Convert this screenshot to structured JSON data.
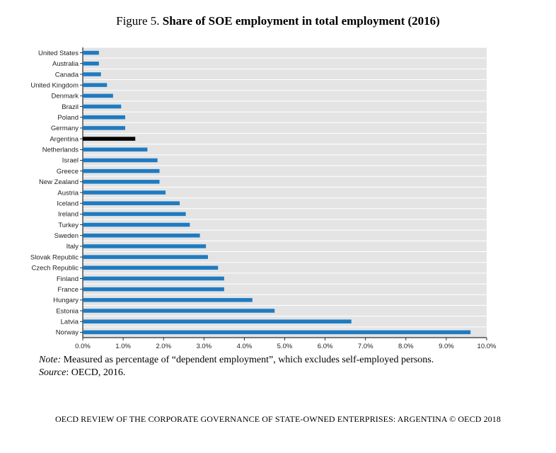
{
  "figure": {
    "prefix": "Figure 5.",
    "title": "Share of SOE employment in total employment (2016)"
  },
  "chart_data": {
    "type": "bar",
    "orientation": "horizontal",
    "categories": [
      "United States",
      "Australia",
      "Canada",
      "United Kingdom",
      "Denmark",
      "Brazil",
      "Poland",
      "Germany",
      "Argentina",
      "Netherlands",
      "Israel",
      "Greece",
      "New Zealand",
      "Austria",
      "Iceland",
      "Ireland",
      "Turkey",
      "Sweden",
      "Italy",
      "Slovak Republic",
      "Czech Republic",
      "Finland",
      "France",
      "Hungary",
      "Estonia",
      "Latvia",
      "Norway"
    ],
    "values": [
      0.4,
      0.4,
      0.45,
      0.6,
      0.75,
      0.95,
      1.05,
      1.05,
      1.3,
      1.6,
      1.85,
      1.9,
      1.9,
      2.05,
      2.4,
      2.55,
      2.65,
      2.9,
      3.05,
      3.1,
      3.35,
      3.5,
      3.5,
      4.2,
      4.75,
      6.65,
      9.6
    ],
    "highlight_category": "Argentina",
    "bar_color": "#1f7bc1",
    "highlight_color": "#000000",
    "plot_bg": "#e4e4e4",
    "grid": true,
    "xlim": [
      0,
      10
    ],
    "xticks": [
      "0.0%",
      "1.0%",
      "2.0%",
      "3.0%",
      "4.0%",
      "5.0%",
      "6.0%",
      "7.0%",
      "8.0%",
      "9.0%",
      "10.0%"
    ],
    "xlabel": "",
    "ylabel": ""
  },
  "note": {
    "label": "Note:",
    "text": " Measured as percentage of “dependent employment”, which excludes self-employed persons."
  },
  "source": {
    "label": "Source",
    "text": ": OECD, 2016."
  },
  "footer": "OECD REVIEW OF THE CORPORATE GOVERNANCE OF STATE-OWNED ENTERPRISES: ARGENTINA © OECD 2018"
}
